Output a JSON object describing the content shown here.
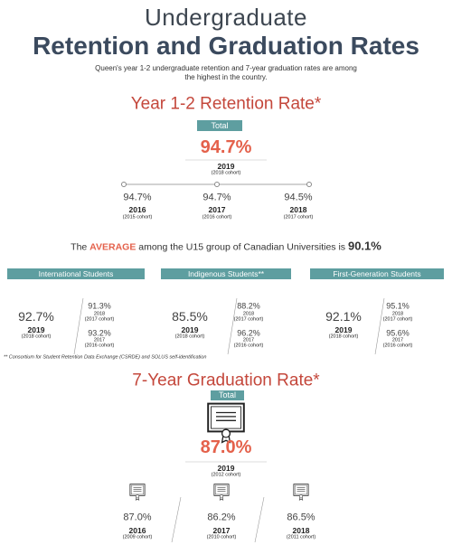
{
  "header": {
    "title_line1": "Undergraduate",
    "title_line2": "Retention and Graduation Rates",
    "intro": "Queen's year 1-2 undergraduate retention and 7-year graduation rates are among the highest in the country."
  },
  "retention": {
    "title": "Year 1-2 Retention Rate*",
    "total_label": "Total",
    "main": {
      "value": "94.7%",
      "year": "2019",
      "cohort": "(2018 cohort)"
    },
    "history": [
      {
        "value": "94.7%",
        "year": "2016",
        "cohort": "(2015 cohort)"
      },
      {
        "value": "94.7%",
        "year": "2017",
        "cohort": "(2016 cohort)"
      },
      {
        "value": "94.5%",
        "year": "2018",
        "cohort": "(2017 cohort)"
      }
    ]
  },
  "average": {
    "prefix": "The",
    "highlight": "AVERAGE",
    "text": "among the U15 group of Canadian Universities is",
    "value": "90.1%"
  },
  "groups": [
    {
      "label": "International Students",
      "main": {
        "value": "92.7%",
        "year": "2019",
        "cohort": "(2018 cohort)"
      },
      "history": [
        {
          "value": "91.3%",
          "year": "2018",
          "cohort": "(2017 cohort)"
        },
        {
          "value": "93.2%",
          "year": "2017",
          "cohort": "(2016 cohort)"
        }
      ]
    },
    {
      "label": "Indigenous Students**",
      "main": {
        "value": "85.5%",
        "year": "2019",
        "cohort": "(2018 cohort)"
      },
      "history": [
        {
          "value": "88.2%",
          "year": "2018",
          "cohort": "(2017 cohort)"
        },
        {
          "value": "96.2%",
          "year": "2017",
          "cohort": "(2016 cohort)"
        }
      ]
    },
    {
      "label": "First-Generation Students",
      "main": {
        "value": "92.1%",
        "year": "2019",
        "cohort": "(2018 cohort)"
      },
      "history": [
        {
          "value": "95.1%",
          "year": "2018",
          "cohort": "(2017 cohort)"
        },
        {
          "value": "95.6%",
          "year": "2017",
          "cohort": "(2016 cohort)"
        }
      ]
    }
  ],
  "footnote": "** Consortium for Student Retention Data Exchange (CSRDE) and SOLUS self-identification",
  "graduation": {
    "title": "7-Year Graduation Rate*",
    "total_label": "Total",
    "main": {
      "value": "87.0%",
      "year": "2019",
      "cohort": "(2012 cohort)"
    },
    "history": [
      {
        "value": "87.0%",
        "year": "2016",
        "cohort": "(2009 cohort)"
      },
      {
        "value": "86.2%",
        "year": "2017",
        "cohort": "(2010 cohort)"
      },
      {
        "value": "86.5%",
        "year": "2018",
        "cohort": "(2011 cohort)"
      }
    ]
  }
}
